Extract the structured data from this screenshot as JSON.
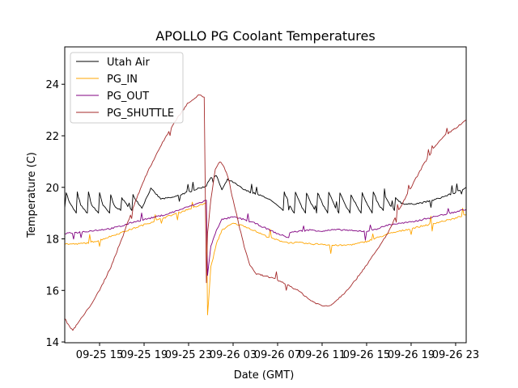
{
  "chart_data": {
    "type": "line",
    "title": "APOLLO PG Coolant Temperatures",
    "xlabel": "Date (GMT)",
    "ylabel": "Temperature (C)",
    "x_unit": "hours since 09-25 00:00 GMT",
    "xlim": [
      11.87,
      47.95
    ],
    "ylim": [
      13.97,
      25.45
    ],
    "x_ticks": [
      {
        "value": 15,
        "label": "09-25 15"
      },
      {
        "value": 19,
        "label": "09-25 19"
      },
      {
        "value": 23,
        "label": "09-25 23"
      },
      {
        "value": 27,
        "label": "09-26 03"
      },
      {
        "value": 31,
        "label": "09-26 07"
      },
      {
        "value": 35,
        "label": "09-26 11"
      },
      {
        "value": 39,
        "label": "09-26 15"
      },
      {
        "value": 43,
        "label": "09-26 19"
      },
      {
        "value": 47,
        "label": "09-26 23"
      }
    ],
    "y_ticks": [
      {
        "value": 14,
        "label": "14"
      },
      {
        "value": 16,
        "label": "16"
      },
      {
        "value": 18,
        "label": "18"
      },
      {
        "value": 20,
        "label": "20"
      },
      {
        "value": 22,
        "label": "22"
      },
      {
        "value": 24,
        "label": "24"
      }
    ],
    "grid": false,
    "legend": {
      "position": "top-left"
    },
    "series": [
      {
        "name": "Utah Air",
        "color": "#000000",
        "x": [
          11.87,
          12.0,
          12.3,
          12.9,
          13.0,
          13.3,
          13.9,
          14.0,
          14.3,
          14.9,
          15.0,
          15.3,
          15.9,
          16.0,
          16.3,
          16.9,
          17.0,
          17.3,
          17.9,
          18.0,
          18.3,
          18.8,
          19.6,
          20.5,
          21.5,
          22.5,
          23.5,
          24.6,
          24.7,
          25.0,
          25.5,
          26.0,
          26.5,
          27.0,
          28.0,
          29.0,
          30.0,
          30.5,
          31.5,
          31.6,
          32.1,
          32.5,
          32.6,
          33.1,
          33.5,
          33.6,
          34.1,
          34.5,
          34.6,
          35.1,
          35.5,
          35.6,
          36.1,
          36.5,
          36.6,
          37.1,
          37.5,
          37.6,
          38.1,
          38.5,
          38.6,
          39.1,
          39.5,
          39.6,
          40.1,
          40.5,
          40.6,
          41.1,
          41.5,
          41.6,
          42.1,
          42.5,
          43.0,
          44.0,
          45.0,
          46.0,
          47.0,
          47.95
        ],
        "y": [
          19.2,
          19.8,
          19.4,
          19.0,
          19.8,
          19.3,
          19.0,
          19.8,
          19.3,
          19.0,
          19.8,
          19.3,
          19.0,
          19.7,
          19.3,
          19.1,
          19.6,
          19.4,
          19.1,
          19.7,
          19.5,
          19.2,
          19.95,
          19.55,
          19.6,
          19.75,
          19.9,
          20.05,
          20.2,
          20.35,
          20.45,
          19.9,
          20.3,
          20.2,
          19.9,
          19.75,
          19.6,
          19.45,
          19.1,
          19.8,
          19.3,
          19.0,
          19.8,
          19.3,
          19.0,
          19.8,
          19.3,
          19.0,
          19.8,
          19.3,
          19.0,
          19.8,
          19.3,
          19.0,
          19.8,
          19.3,
          19.0,
          19.7,
          19.3,
          19.0,
          19.8,
          19.3,
          19.0,
          19.8,
          19.3,
          19.1,
          19.7,
          19.3,
          19.1,
          19.6,
          19.4,
          19.35,
          19.35,
          19.4,
          19.5,
          19.65,
          19.8,
          20.0
        ]
      },
      {
        "name": "PG_IN",
        "color": "#ffa500",
        "x": [
          11.87,
          13.0,
          14.0,
          15.0,
          16.0,
          17.0,
          18.0,
          19.0,
          20.0,
          21.0,
          22.0,
          23.0,
          24.0,
          24.6,
          24.7,
          25.0,
          25.5,
          26.0,
          27.0,
          28.0,
          29.0,
          30.0,
          31.0,
          32.0,
          33.0,
          34.0,
          35.0,
          36.0,
          37.0,
          38.0,
          39.0,
          40.0,
          41.0,
          42.0,
          43.0,
          44.0,
          45.0,
          46.0,
          47.0,
          47.95
        ],
        "y": [
          17.8,
          17.8,
          17.85,
          17.95,
          18.1,
          18.25,
          18.4,
          18.55,
          18.7,
          18.85,
          19.0,
          19.15,
          19.3,
          19.4,
          15.03,
          16.9,
          17.8,
          18.35,
          18.6,
          18.5,
          18.3,
          18.1,
          17.95,
          17.85,
          17.85,
          17.8,
          17.8,
          17.75,
          17.75,
          17.8,
          17.9,
          18.05,
          18.2,
          18.3,
          18.4,
          18.5,
          18.6,
          18.7,
          18.8,
          18.95
        ]
      },
      {
        "name": "PG_OUT",
        "color": "#800080",
        "x": [
          11.87,
          13.0,
          14.0,
          15.0,
          16.0,
          17.0,
          18.0,
          19.0,
          20.0,
          21.0,
          22.0,
          23.0,
          24.0,
          24.6,
          24.7,
          25.0,
          25.5,
          26.0,
          27.0,
          28.0,
          29.0,
          30.0,
          31.0,
          32.0,
          32.1,
          33.0,
          34.0,
          35.0,
          36.0,
          37.0,
          38.0,
          39.0,
          40.0,
          41.0,
          42.0,
          43.0,
          44.0,
          45.0,
          46.0,
          47.0,
          47.95
        ],
        "y": [
          18.2,
          18.25,
          18.3,
          18.35,
          18.4,
          18.5,
          18.65,
          18.75,
          18.85,
          18.95,
          19.1,
          19.25,
          19.4,
          19.5,
          16.6,
          17.7,
          18.35,
          18.75,
          18.85,
          18.75,
          18.6,
          18.4,
          18.2,
          18.05,
          18.25,
          18.3,
          18.35,
          18.3,
          18.35,
          18.35,
          18.3,
          18.3,
          18.4,
          18.55,
          18.6,
          18.65,
          18.75,
          18.85,
          18.95,
          19.05,
          19.15
        ]
      },
      {
        "name": "PG_SHUTTLE",
        "color": "#a52a2a",
        "x": [
          11.87,
          12.3,
          12.6,
          13.0,
          14.0,
          15.0,
          16.0,
          17.0,
          18.0,
          19.0,
          20.0,
          21.0,
          22.0,
          23.0,
          24.0,
          24.4,
          24.6,
          24.7,
          25.0,
          25.4,
          25.8,
          26.2,
          26.6,
          27.0,
          27.5,
          28.0,
          28.5,
          29.0,
          29.5,
          30.0,
          31.0,
          32.0,
          33.0,
          34.0,
          35.0,
          35.6,
          36.0,
          37.0,
          38.0,
          39.0,
          40.0,
          41.0,
          42.0,
          43.0,
          44.0,
          45.0,
          46.0,
          47.0,
          47.95
        ],
        "y": [
          14.9,
          14.6,
          14.45,
          14.7,
          15.3,
          16.0,
          16.9,
          18.0,
          19.2,
          20.3,
          21.2,
          22.0,
          22.7,
          23.3,
          23.6,
          23.5,
          16.3,
          18.2,
          19.5,
          20.7,
          21.0,
          20.8,
          20.3,
          19.5,
          18.6,
          17.7,
          17.0,
          16.65,
          16.6,
          16.55,
          16.4,
          16.2,
          15.95,
          15.6,
          15.4,
          15.4,
          15.5,
          15.9,
          16.4,
          17.0,
          17.6,
          18.3,
          19.2,
          20.0,
          20.8,
          21.5,
          22.0,
          22.3,
          22.6
        ]
      }
    ]
  }
}
